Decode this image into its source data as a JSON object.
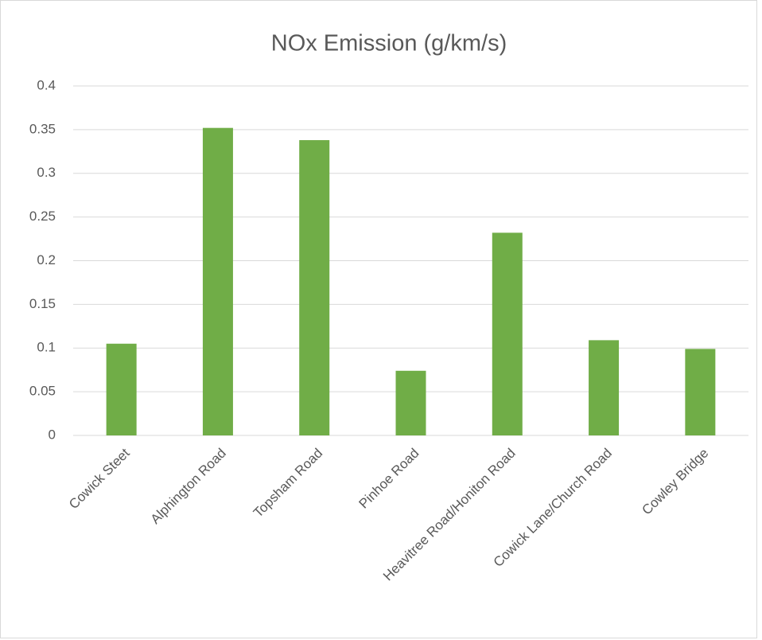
{
  "chart_data": {
    "type": "bar",
    "title": "NOx Emission (g/km/s)",
    "categories": [
      "Cowick Steet",
      "Alphington Road",
      "Topsham Road",
      "Pinhoe Road",
      "Heavitree Road/Honiton Road",
      "Cowick Lane/Church Road",
      "Cowley Bridge"
    ],
    "values": [
      0.105,
      0.352,
      0.338,
      0.074,
      0.232,
      0.109,
      0.099
    ],
    "color": "#70ad47",
    "ylim": [
      0,
      0.4
    ],
    "yticks": [
      0,
      0.05,
      0.1,
      0.15,
      0.2,
      0.25,
      0.3,
      0.35,
      0.4
    ],
    "grid": true
  }
}
